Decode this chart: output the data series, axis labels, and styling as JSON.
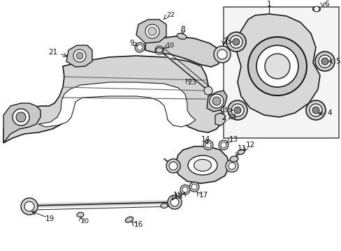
{
  "bg_color": "#ffffff",
  "line_color": "#1a1a1a",
  "label_color": "#111111",
  "fig_width": 4.89,
  "fig_height": 3.6,
  "dpi": 100
}
